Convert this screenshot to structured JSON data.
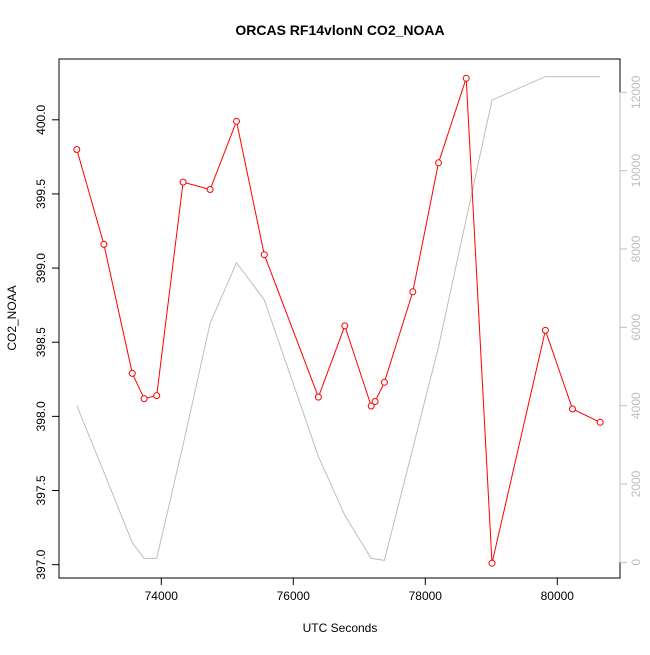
{
  "chart_data": {
    "type": "line",
    "title": "ORCAS RF14vlonN CO2_NOAA",
    "xlabel": "UTC Seconds",
    "ylabel": "CO2_NOAA",
    "y2label": "",
    "xlim": [
      72450,
      80950
    ],
    "ylim": [
      396.91,
      400.41
    ],
    "y2lim": [
      -400,
      12850
    ],
    "x_ticks": [
      74000,
      76000,
      78000,
      80000
    ],
    "y_ticks": [
      397.0,
      397.5,
      398.0,
      398.5,
      399.0,
      399.5,
      400.0
    ],
    "y2_ticks": [
      0,
      2000,
      4000,
      6000,
      8000,
      10000,
      12000
    ],
    "grid": false,
    "legend": "none",
    "colors": {
      "co2": "#ff0000",
      "altitude": "#bebebe",
      "axis": "#000000"
    },
    "series": [
      {
        "axis": "left",
        "style": "line+markers",
        "color": "#ff0000",
        "x": [
          72720,
          73130,
          73560,
          73740,
          73930,
          74330,
          74740,
          75140,
          75560,
          76380,
          76780,
          77180,
          77240,
          77380,
          77810,
          78200,
          78620,
          79010,
          79820,
          80230,
          80650
        ],
        "y": [
          399.8,
          399.16,
          398.29,
          398.12,
          398.14,
          399.58,
          399.53,
          399.99,
          399.09,
          398.13,
          398.61,
          398.07,
          398.1,
          398.23,
          398.84,
          399.71,
          400.28,
          397.01,
          398.58,
          398.05,
          397.96
        ]
      },
      {
        "axis": "right",
        "style": "line",
        "color": "#bebebe",
        "x": [
          72720,
          73130,
          73560,
          73740,
          73930,
          74330,
          74740,
          75140,
          75560,
          76380,
          76780,
          77180,
          77380,
          78200,
          79010,
          79820,
          80230,
          80650
        ],
        "y": [
          4000,
          2300,
          500,
          100,
          100,
          3000,
          6100,
          7650,
          6700,
          2700,
          1200,
          100,
          50,
          5500,
          11800,
          12400,
          12400,
          12400
        ]
      }
    ]
  }
}
